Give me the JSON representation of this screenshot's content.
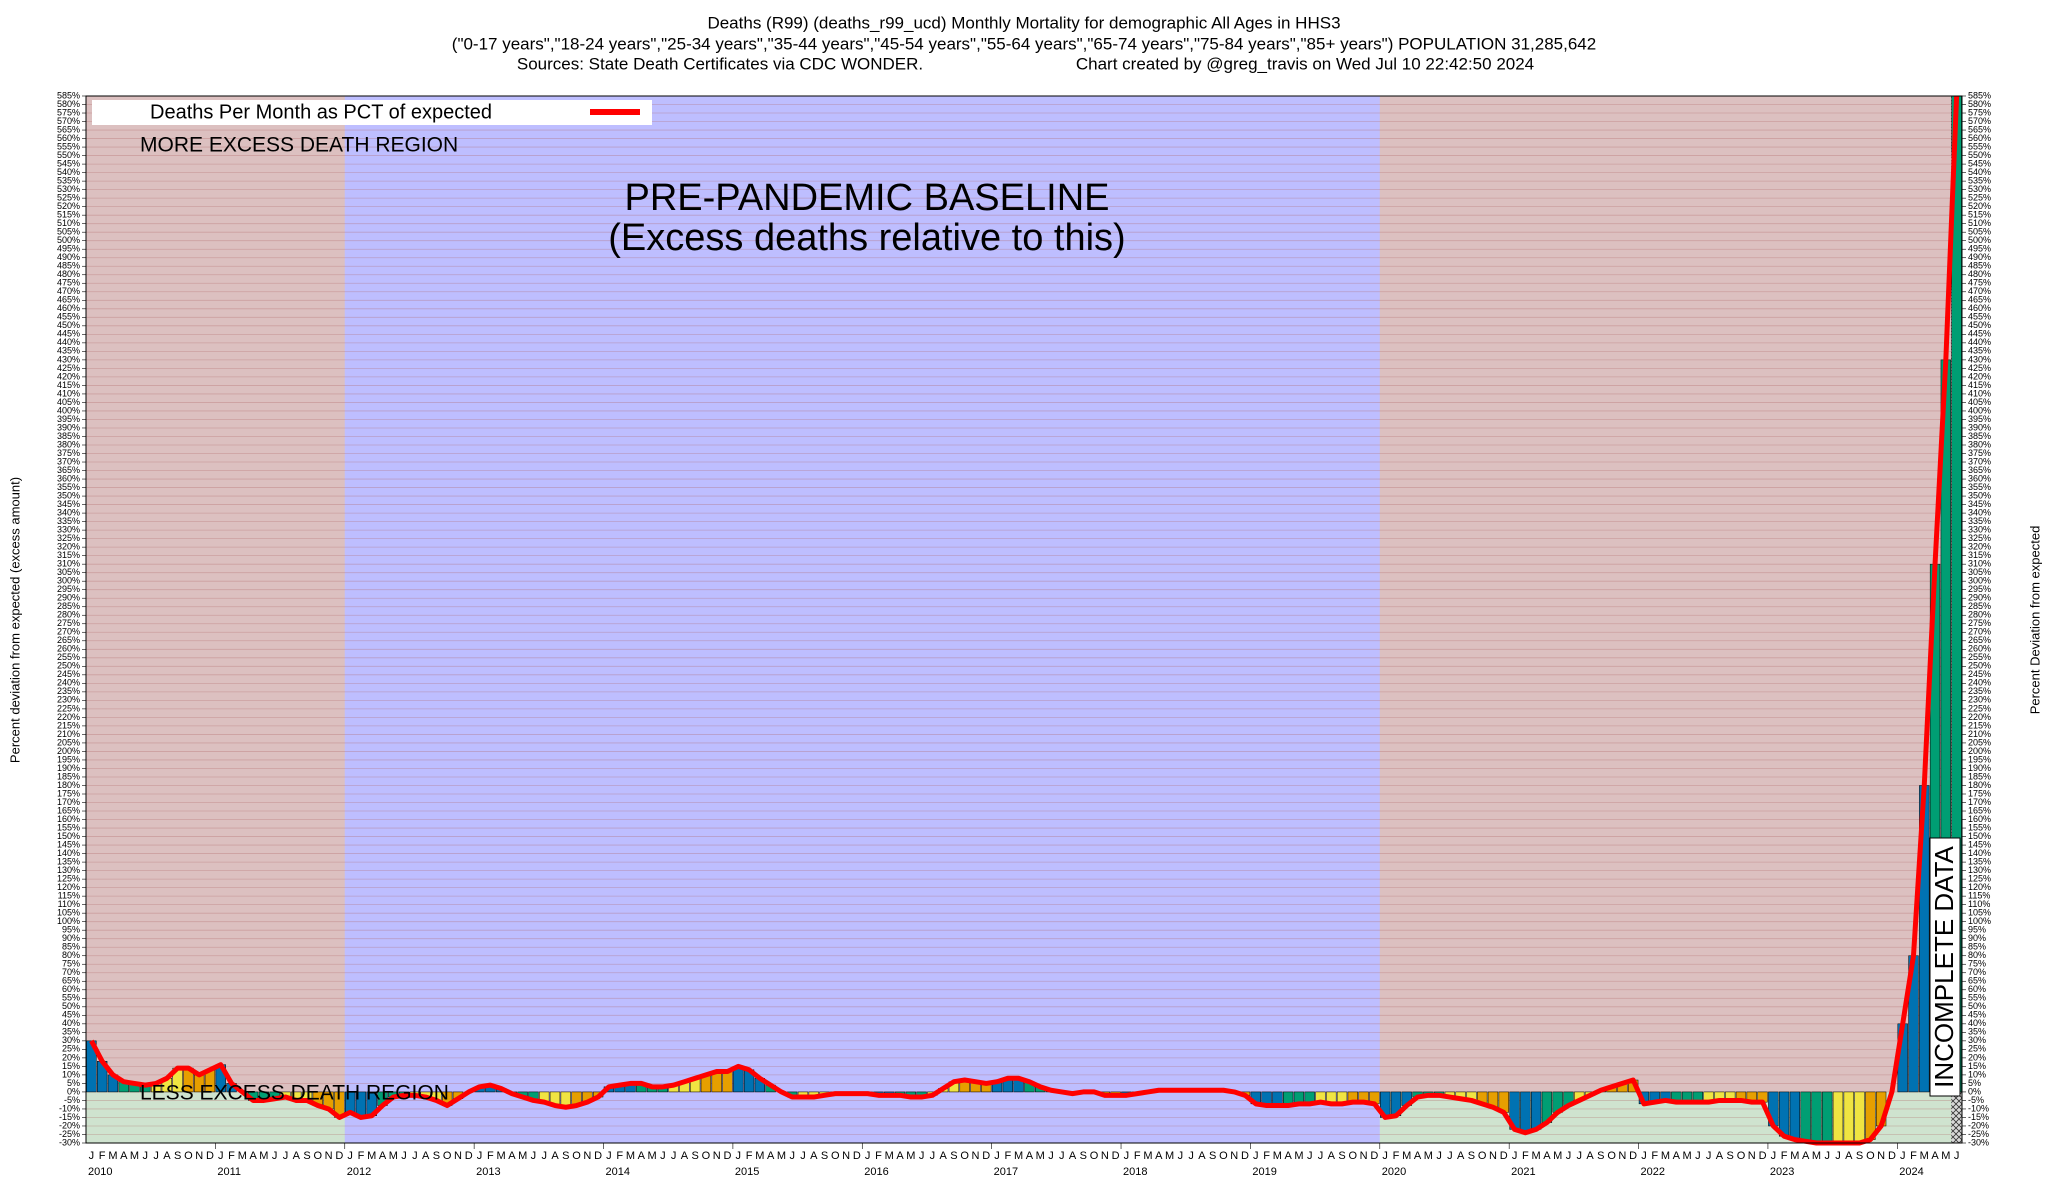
{
  "chart_data": {
    "type": "bar",
    "title_lines": [
      "Deaths (R99) (deaths_r99_ucd) Monthly Mortality for demographic All Ages in HHS3",
      "(\"0-17 years\",\"18-24 years\",\"25-34 years\",\"35-44 years\",\"45-54 years\",\"55-64 years\",\"65-74 years\",\"75-84 years\",\"85+ years\") POPULATION 31,285,642",
      "Sources: State Death Certificates via CDC WONDER.",
      "Chart created by @greg_travis on Wed Jul 10 22:42:50 2024"
    ],
    "ylabel": "Percent deviation from expected (excess amount)",
    "y2label": "Percent Deviation from expected",
    "legend": "Deaths Per Month as PCT of expected",
    "line_color": "#ff0000",
    "quarter_colors": [
      "#0072b2",
      "#009e73",
      "#f0e442",
      "#e69f00"
    ],
    "more_label": "MORE EXCESS DEATH REGION",
    "less_label": "LESS EXCESS DEATH REGION",
    "baseline": {
      "title": "PRE-PANDEMIC BASELINE",
      "subtitle": "(Excess deaths relative to this)",
      "from": "2012",
      "to": "2019"
    },
    "incomplete_label": "INCOMPLETE DATA",
    "years": [
      "2010",
      "2011",
      "2012",
      "2013",
      "2014",
      "2015",
      "2016",
      "2017",
      "2018",
      "2019",
      "2020",
      "2021",
      "2022",
      "2023",
      "2024"
    ],
    "categories": [
      "J",
      "F",
      "M",
      "A",
      "M",
      "J",
      "J",
      "A",
      "S",
      "O",
      "N",
      "D",
      "J",
      "F",
      "M",
      "A",
      "M",
      "J",
      "J",
      "A",
      "S",
      "O",
      "N",
      "D",
      "J",
      "F",
      "M",
      "A",
      "M",
      "J",
      "J",
      "A",
      "S",
      "O",
      "N",
      "D",
      "J",
      "F",
      "M",
      "A",
      "M",
      "J",
      "J",
      "A",
      "S",
      "O",
      "N",
      "D",
      "J",
      "F",
      "M",
      "A",
      "M",
      "J",
      "J",
      "A",
      "S",
      "O",
      "N",
      "D",
      "J",
      "F",
      "M",
      "A",
      "M",
      "J",
      "J",
      "A",
      "S",
      "O",
      "N",
      "D",
      "J",
      "F",
      "M",
      "A",
      "M",
      "J",
      "J",
      "A",
      "S",
      "O",
      "N",
      "D",
      "J",
      "F",
      "M",
      "A",
      "M",
      "J",
      "J",
      "A",
      "S",
      "O",
      "N",
      "D",
      "J",
      "F",
      "M",
      "A",
      "M",
      "J",
      "J",
      "A",
      "S",
      "O",
      "N",
      "D",
      "J",
      "F",
      "M",
      "A",
      "M",
      "J",
      "J",
      "A",
      "S",
      "O",
      "N",
      "D",
      "J",
      "F",
      "M",
      "A",
      "M",
      "J",
      "J",
      "A",
      "S",
      "O",
      "N",
      "D",
      "J",
      "F",
      "M",
      "A",
      "M",
      "J",
      "J",
      "A",
      "S",
      "O",
      "N",
      "D",
      "J",
      "F",
      "M",
      "A",
      "M",
      "J",
      "J",
      "A",
      "S",
      "O",
      "N",
      "D",
      "J",
      "F",
      "M",
      "A",
      "M",
      "J",
      "J",
      "A",
      "S",
      "O",
      "N",
      "D",
      "J",
      "F",
      "M",
      "A",
      "M",
      "J"
    ],
    "values": [
      30,
      18,
      10,
      6,
      5,
      4,
      5,
      8,
      14,
      14,
      10,
      13,
      16,
      5,
      0,
      -5,
      -5,
      -4,
      -3,
      -5,
      -5,
      -8,
      -10,
      -15,
      -12,
      -15,
      -14,
      -8,
      -3,
      -2,
      -2,
      -3,
      -5,
      -8,
      -4,
      0,
      3,
      4,
      2,
      -1,
      -3,
      -5,
      -6,
      -8,
      -9,
      -8,
      -6,
      -3,
      3,
      4,
      5,
      5,
      3,
      3,
      4,
      6,
      8,
      10,
      12,
      12,
      15,
      13,
      8,
      4,
      0,
      -3,
      -3,
      -3,
      -2,
      -1,
      -1,
      -1,
      -1,
      -2,
      -2,
      -2,
      -3,
      -3,
      -2,
      2,
      6,
      7,
      6,
      5,
      6,
      8,
      8,
      6,
      3,
      1,
      0,
      -1,
      0,
      0,
      -2,
      -2,
      -2,
      -1,
      0,
      1,
      1,
      1,
      1,
      1,
      1,
      1,
      0,
      -2,
      -7,
      -8,
      -8,
      -8,
      -7,
      -7,
      -6,
      -7,
      -7,
      -6,
      -6,
      -7,
      -15,
      -14,
      -8,
      -3,
      -2,
      -2,
      -3,
      -4,
      -5,
      -7,
      -9,
      -12,
      -22,
      -24,
      -22,
      -18,
      -12,
      -8,
      -5,
      -2,
      1,
      3,
      5,
      7,
      -7,
      -6,
      -5,
      -6,
      -6,
      -6,
      -6,
      -5,
      -5,
      -5,
      -6,
      -6,
      -20,
      -26,
      -28,
      -29,
      -30,
      -30,
      -30,
      -30,
      -30,
      -28,
      -20,
      0,
      40,
      80,
      180,
      310,
      430,
      585
    ],
    "ylim": [
      -30,
      585
    ],
    "grid": true,
    "yticks": [
      {
        "value": -30,
        "label": "-30%"
      },
      {
        "value": -25,
        "label": "-25%"
      },
      {
        "value": -20,
        "label": "-20%"
      },
      {
        "value": -15,
        "label": "-15%"
      },
      {
        "value": -10,
        "label": "-10%"
      },
      {
        "value": -5,
        "label": "-5%"
      },
      {
        "value": 0,
        "label": "0%"
      },
      {
        "value": 5,
        "label": "5%"
      },
      {
        "value": 10,
        "label": "10%"
      },
      {
        "value": 15,
        "label": "15%"
      },
      {
        "value": 20,
        "label": "20%"
      },
      {
        "value": 25,
        "label": "25%"
      },
      {
        "value": 30,
        "label": "30%"
      },
      {
        "value": 35,
        "label": "35%"
      },
      {
        "value": 40,
        "label": "40%"
      },
      {
        "value": 45,
        "label": "45%"
      },
      {
        "value": 50,
        "label": "50%"
      },
      {
        "value": 55,
        "label": "55%"
      },
      {
        "value": 60,
        "label": "60%"
      },
      {
        "value": 65,
        "label": "65%"
      },
      {
        "value": 70,
        "label": "70%"
      },
      {
        "value": 75,
        "label": "75%"
      },
      {
        "value": 80,
        "label": "80%"
      },
      {
        "value": 85,
        "label": "85%"
      },
      {
        "value": 90,
        "label": "90%"
      },
      {
        "value": 95,
        "label": "95%"
      },
      {
        "value": 100,
        "label": "100%"
      },
      {
        "value": 105,
        "label": "105%"
      },
      {
        "value": 110,
        "label": "110%"
      },
      {
        "value": 115,
        "label": "115%"
      },
      {
        "value": 120,
        "label": "120%"
      },
      {
        "value": 125,
        "label": "125%"
      },
      {
        "value": 130,
        "label": "130%"
      },
      {
        "value": 135,
        "label": "135%"
      },
      {
        "value": 140,
        "label": "140%"
      },
      {
        "value": 145,
        "label": "145%"
      },
      {
        "value": 150,
        "label": "150%"
      },
      {
        "value": 155,
        "label": "155%"
      },
      {
        "value": 160,
        "label": "160%"
      },
      {
        "value": 165,
        "label": "165%"
      },
      {
        "value": 170,
        "label": "170%"
      },
      {
        "value": 175,
        "label": "175%"
      },
      {
        "value": 180,
        "label": "180%"
      },
      {
        "value": 185,
        "label": "185%"
      },
      {
        "value": 190,
        "label": "190%"
      },
      {
        "value": 195,
        "label": "195%"
      },
      {
        "value": 200,
        "label": "200%"
      },
      {
        "value": 205,
        "label": "205%"
      },
      {
        "value": 210,
        "label": "210%"
      },
      {
        "value": 215,
        "label": "215%"
      },
      {
        "value": 220,
        "label": "220%"
      },
      {
        "value": 225,
        "label": "225%"
      },
      {
        "value": 230,
        "label": "230%"
      },
      {
        "value": 235,
        "label": "235%"
      },
      {
        "value": 240,
        "label": "240%"
      },
      {
        "value": 245,
        "label": "245%"
      },
      {
        "value": 250,
        "label": "250%"
      },
      {
        "value": 255,
        "label": "255%"
      },
      {
        "value": 260,
        "label": "260%"
      },
      {
        "value": 265,
        "label": "265%"
      },
      {
        "value": 270,
        "label": "270%"
      },
      {
        "value": 275,
        "label": "275%"
      },
      {
        "value": 280,
        "label": "280%"
      },
      {
        "value": 285,
        "label": "285%"
      },
      {
        "value": 290,
        "label": "290%"
      },
      {
        "value": 295,
        "label": "295%"
      },
      {
        "value": 300,
        "label": "300%"
      },
      {
        "value": 305,
        "label": "305%"
      },
      {
        "value": 310,
        "label": "310%"
      },
      {
        "value": 315,
        "label": "315%"
      },
      {
        "value": 320,
        "label": "320%"
      },
      {
        "value": 325,
        "label": "325%"
      },
      {
        "value": 330,
        "label": "330%"
      },
      {
        "value": 335,
        "label": "335%"
      },
      {
        "value": 340,
        "label": "340%"
      },
      {
        "value": 345,
        "label": "345%"
      },
      {
        "value": 350,
        "label": "350%"
      },
      {
        "value": 355,
        "label": "355%"
      },
      {
        "value": 360,
        "label": "360%"
      },
      {
        "value": 365,
        "label": "365%"
      },
      {
        "value": 370,
        "label": "370%"
      },
      {
        "value": 375,
        "label": "375%"
      },
      {
        "value": 380,
        "label": "380%"
      },
      {
        "value": 385,
        "label": "385%"
      },
      {
        "value": 390,
        "label": "390%"
      },
      {
        "value": 395,
        "label": "395%"
      },
      {
        "value": 400,
        "label": "400%"
      },
      {
        "value": 405,
        "label": "405%"
      },
      {
        "value": 410,
        "label": "410%"
      },
      {
        "value": 415,
        "label": "415%"
      },
      {
        "value": 420,
        "label": "420%"
      },
      {
        "value": 425,
        "label": "425%"
      },
      {
        "value": 430,
        "label": "430%"
      },
      {
        "value": 435,
        "label": "435%"
      },
      {
        "value": 440,
        "label": "440%"
      },
      {
        "value": 445,
        "label": "445%"
      },
      {
        "value": 450,
        "label": "450%"
      },
      {
        "value": 455,
        "label": "455%"
      },
      {
        "value": 460,
        "label": "460%"
      },
      {
        "value": 465,
        "label": "465%"
      },
      {
        "value": 470,
        "label": "470%"
      },
      {
        "value": 475,
        "label": "475%"
      },
      {
        "value": 480,
        "label": "480%"
      },
      {
        "value": 485,
        "label": "485%"
      },
      {
        "value": 490,
        "label": "490%"
      },
      {
        "value": 495,
        "label": "495%"
      },
      {
        "value": 500,
        "label": "500%"
      },
      {
        "value": 505,
        "label": "505%"
      },
      {
        "value": 510,
        "label": "510%"
      },
      {
        "value": 515,
        "label": "515%"
      },
      {
        "value": 520,
        "label": "520%"
      },
      {
        "value": 525,
        "label": "525%"
      },
      {
        "value": 530,
        "label": "530%"
      },
      {
        "value": 535,
        "label": "535%"
      },
      {
        "value": 540,
        "label": "540%"
      },
      {
        "value": 545,
        "label": "545%"
      },
      {
        "value": 550,
        "label": "550%"
      },
      {
        "value": 555,
        "label": "555%"
      },
      {
        "value": 560,
        "label": "560%"
      },
      {
        "value": 565,
        "label": "565%"
      },
      {
        "value": 570,
        "label": "570%"
      },
      {
        "value": 575,
        "label": "575%"
      },
      {
        "value": 580,
        "label": "580%"
      },
      {
        "value": 585,
        "label": "585%"
      }
    ]
  }
}
